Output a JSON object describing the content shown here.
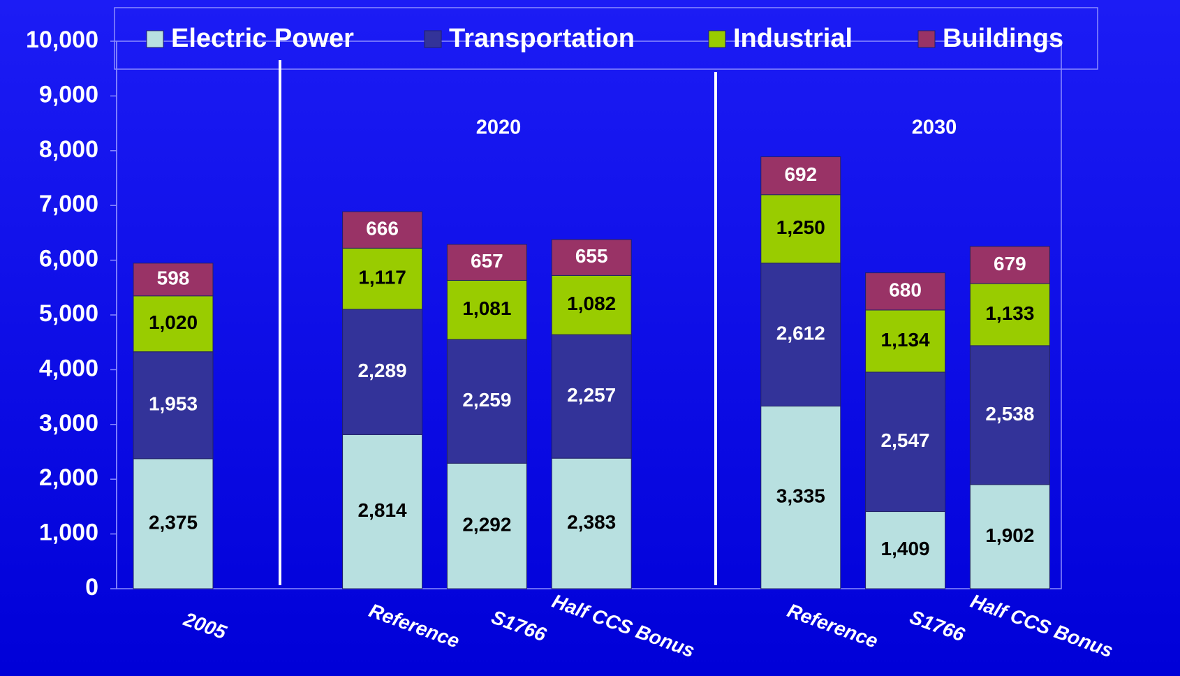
{
  "chart_data": {
    "type": "stacked_bar",
    "categories": [
      "2005",
      null,
      "Reference",
      "S1766",
      "Half CCS Bonus",
      null,
      "Reference",
      "S1766",
      "Half CCS Bonus"
    ],
    "series": [
      {
        "name": "Electric Power",
        "color": "#b8e0e0",
        "label_color": "#000000",
        "values": [
          2375,
          null,
          2814,
          2292,
          2383,
          null,
          3335,
          1409,
          1902
        ],
        "value_labels": [
          "2,375",
          null,
          "2,814",
          "2,292",
          "2,383",
          null,
          "3,335",
          "1,409",
          "1,902"
        ]
      },
      {
        "name": "Transportation",
        "color": "#333399",
        "label_color": "#ffffff",
        "values": [
          1953,
          null,
          2289,
          2259,
          2257,
          null,
          2612,
          2547,
          2538
        ],
        "value_labels": [
          "1,953",
          null,
          "2,289",
          "2,259",
          "2,257",
          null,
          "2,612",
          "2,547",
          "2,538"
        ]
      },
      {
        "name": "Industrial",
        "color": "#99cc00",
        "label_color": "#000000",
        "values": [
          1020,
          null,
          1117,
          1081,
          1082,
          null,
          1250,
          1134,
          1133
        ],
        "value_labels": [
          "1,020",
          null,
          "1,117",
          "1,081",
          "1,082",
          null,
          "1,250",
          "1,134",
          "1,133"
        ]
      },
      {
        "name": "Buildings",
        "color": "#993366",
        "label_color": "#ffffff",
        "values": [
          598,
          null,
          666,
          657,
          655,
          null,
          692,
          680,
          679
        ]
      }
    ],
    "annotations": [
      "2020",
      "2030"
    ],
    "ylim": [
      0,
      10000
    ],
    "yticks": [
      0,
      {
        "value": 1000,
        "label": "1,000"
      },
      {
        "value": 2000,
        "label": "2,000"
      },
      {
        "value": 3000,
        "label": "3,000"
      },
      {
        "value": 4000,
        "label": "4,000"
      },
      {
        "value": 5000,
        "label": "5,000"
      },
      {
        "value": 6000,
        "label": "6,000"
      },
      {
        "value": 7000,
        "label": "7,000"
      },
      {
        "value": 8000,
        "label": "8,000"
      },
      {
        "value": 9000,
        "label": "9,000"
      },
      {
        "value": 10000,
        "label": "10,000"
      }
    ],
    "grid": false,
    "legend": "top"
  }
}
